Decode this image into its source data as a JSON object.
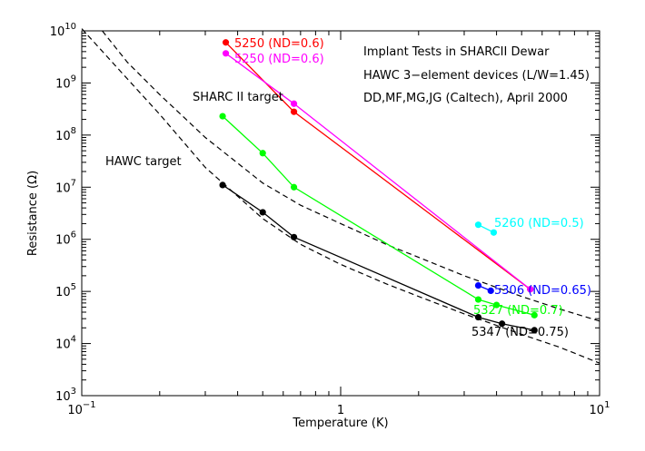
{
  "chart_data": {
    "type": "line",
    "x_scale": "log",
    "y_scale": "log",
    "xlim": [
      0.1,
      10
    ],
    "ylim": [
      1000,
      10000000000
    ],
    "xlabel": "Temperature (K)",
    "ylabel": "Resistance (Ω)",
    "x_ticks": [
      {
        "value": 0.1,
        "base": "10",
        "exp": "−1"
      },
      {
        "value": 1,
        "base": "1",
        "exp": ""
      },
      {
        "value": 10,
        "base": "10",
        "exp": "1"
      }
    ],
    "y_ticks": [
      {
        "value": 1000,
        "base": "10",
        "exp": "3"
      },
      {
        "value": 10000,
        "base": "10",
        "exp": "4"
      },
      {
        "value": 100000,
        "base": "10",
        "exp": "5"
      },
      {
        "value": 1000000,
        "base": "10",
        "exp": "6"
      },
      {
        "value": 10000000,
        "base": "10",
        "exp": "7"
      },
      {
        "value": 100000000,
        "base": "10",
        "exp": "8"
      },
      {
        "value": 1000000000,
        "base": "10",
        "exp": "9"
      },
      {
        "value": 10000000000,
        "base": "10",
        "exp": "10"
      }
    ],
    "grid": false,
    "annotations": [
      "Implant Tests in SHARCII Dewar",
      "HAWC 3−element devices (L/W=1.45)",
      "DD,MF,MG,JG (Caltech), April 2000"
    ],
    "targets": [
      {
        "label": "SHARC II target",
        "style": "dashed",
        "x": [
          0.12,
          0.15,
          0.2,
          0.3,
          0.5,
          0.7,
          1,
          1.5,
          2,
          3,
          5,
          7,
          10
        ],
        "y": [
          10000000000.0,
          2500000000.0,
          600000000.0,
          90000000.0,
          12000000.0,
          4500000.0,
          2000000.0,
          800000.0,
          450000.0,
          200000.0,
          80000.0,
          46000.0,
          27000.0
        ]
      },
      {
        "label": "HAWC target",
        "style": "dashed",
        "x": [
          0.1,
          0.15,
          0.2,
          0.3,
          0.5,
          0.7,
          1,
          1.5,
          2,
          3,
          5,
          7,
          10
        ],
        "y": [
          11000000000.0,
          1200000000.0,
          250000000.0,
          24000000.0,
          2500000.0,
          800000.0,
          330000.0,
          140000.0,
          80000.0,
          37000.0,
          15000.0,
          8500.0,
          4200.0
        ]
      }
    ],
    "series": [
      {
        "name": "5250 (ND=0.6)",
        "color": "#ff0000",
        "x": [
          0.36,
          0.66,
          5.4
        ],
        "y": [
          6000000000.0,
          280000000.0,
          110000.0
        ]
      },
      {
        "name": "5250 (ND=0.6)",
        "color": "#ff00ff",
        "x": [
          0.36,
          0.66,
          5.4
        ],
        "y": [
          3700000000.0,
          400000000.0,
          110000.0
        ]
      },
      {
        "name": "5260 (ND=0.5)",
        "color": "#00ffff",
        "x": [
          3.4,
          3.9
        ],
        "y": [
          1900000.0,
          1350000.0
        ]
      },
      {
        "name": "5306 (ND=0.65)",
        "color": "#0000ff",
        "x": [
          3.4,
          3.8
        ],
        "y": [
          130000.0,
          103000.0
        ]
      },
      {
        "name": "5327 (ND=0.7)",
        "color": "#00ff00",
        "x": [
          0.35,
          0.5,
          0.66,
          3.4,
          4.0,
          5.6
        ],
        "y": [
          230000000.0,
          45000000.0,
          10000000.0,
          70000.0,
          55000.0,
          35000.0
        ]
      },
      {
        "name": "5347 (ND=0.75)",
        "color": "#000000",
        "x": [
          0.35,
          0.5,
          0.66,
          3.4,
          4.2,
          5.6
        ],
        "y": [
          11000000.0,
          3300000.0,
          1100000.0,
          32000.0,
          24000.0,
          18000.0
        ]
      }
    ]
  }
}
